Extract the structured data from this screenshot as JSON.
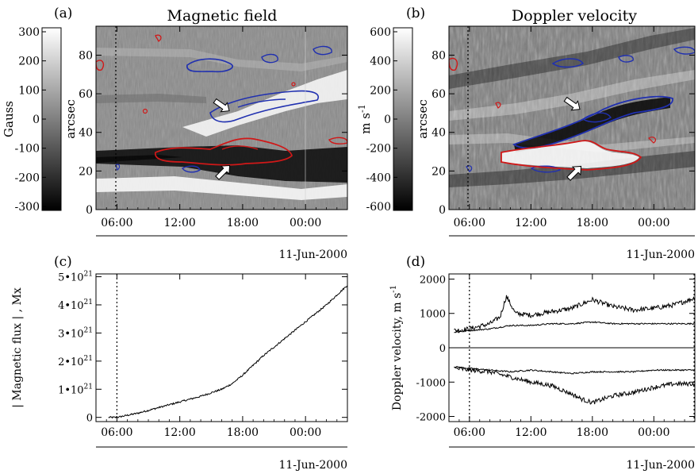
{
  "panels": {
    "a": {
      "letter": "(a)",
      "title": "Magnetic field",
      "colorbar_label": "Gauss",
      "colorbar_ticks": [
        "300",
        "200",
        "100",
        "0",
        "-100",
        "-200",
        "-300"
      ],
      "ylabel": "arcsec",
      "yticks": [
        "0",
        "20",
        "40",
        "60",
        "80"
      ],
      "xticks": [
        "06:00",
        "12:00",
        "18:00",
        "00:00"
      ],
      "date": "11-Jun-2000"
    },
    "b": {
      "letter": "(b)",
      "title": "Doppler velocity",
      "colorbar_label": "m s",
      "colorbar_label_sup": "-1",
      "colorbar_ticks": [
        "600",
        "400",
        "200",
        "0",
        "-200",
        "-400",
        "-600"
      ],
      "ylabel": "arcsec",
      "yticks": [
        "0",
        "20",
        "40",
        "60",
        "80"
      ],
      "xticks": [
        "06:00",
        "12:00",
        "18:00",
        "00:00"
      ],
      "date": "11-Jun-2000"
    },
    "c": {
      "letter": "(c)",
      "ylabel": "| Magnetic flux | , Mx",
      "yticks": [
        "0",
        "1•10",
        "2•10",
        "3•10",
        "4•10",
        "5•10"
      ],
      "ytick_exp": "21",
      "xticks": [
        "06:00",
        "12:00",
        "18:00",
        "00:00"
      ],
      "date": "11-Jun-2000"
    },
    "d": {
      "letter": "(d)",
      "ylabel": "Doppler velocity, m s",
      "ylabel_sup": "-1",
      "yticks": [
        "2000",
        "1000",
        "0",
        "-1000",
        "-2000"
      ],
      "xticks": [
        "06:00",
        "12:00",
        "18:00",
        "00:00"
      ],
      "date": "11-Jun-2000"
    }
  },
  "colors": {
    "positive_contour": "#2030b0",
    "negative_contour": "#d01818",
    "axis": "#000000"
  },
  "chart_data": [
    {
      "panel": "c",
      "type": "line",
      "xlabel": "",
      "ylabel": "| Magnetic flux | , Mx",
      "x_unit": "hours since 00:00 10-Jun-2000",
      "xlim": [
        4,
        28
      ],
      "ylim": [
        -1.5e+20,
        5.1e+21
      ],
      "series": [
        {
          "x": [
            6,
            8,
            10,
            12,
            14,
            16,
            17,
            18,
            20,
            22,
            24,
            26,
            28
          ],
          "values": [
            0,
            1.5e+20,
            3.5e+20,
            5.5e+20,
            7.5e+20,
            1e+21,
            1.2e+21,
            1.5e+21,
            2.2e+21,
            2.8e+21,
            3.4e+21,
            4e+21,
            4.7e+21
          ]
        }
      ],
      "markers": {
        "dotted_vline_x": 6
      }
    },
    {
      "panel": "d",
      "type": "line",
      "xlabel": "",
      "ylabel": "Doppler velocity, m s-1",
      "xlim": [
        4,
        28
      ],
      "ylim": [
        -2150,
        2150
      ],
      "series": [
        {
          "x": [
            4.5,
            6,
            8,
            9,
            9.6,
            10.5,
            12,
            14,
            16,
            18,
            20,
            22,
            24,
            26,
            28
          ],
          "values": [
            500,
            550,
            700,
            900,
            1500,
            1000,
            950,
            1050,
            1150,
            1400,
            1200,
            1100,
            1150,
            1250,
            1450
          ]
        },
        {
          "x": [
            4.5,
            6,
            8,
            10,
            12,
            14,
            16,
            18,
            20,
            22,
            24,
            26,
            28
          ],
          "values": [
            450,
            500,
            550,
            650,
            650,
            700,
            700,
            750,
            700,
            700,
            700,
            700,
            700
          ]
        },
        {
          "x": [
            4.5,
            6,
            8,
            10,
            12,
            14,
            16,
            18,
            20,
            22,
            24,
            26,
            28
          ],
          "values": [
            -550,
            -600,
            -650,
            -700,
            -650,
            -700,
            -750,
            -700,
            -700,
            -700,
            -650,
            -650,
            -650
          ]
        },
        {
          "x": [
            4.5,
            6,
            8,
            10,
            12,
            14,
            16,
            17,
            18,
            20,
            22,
            24,
            26,
            28
          ],
          "values": [
            -600,
            -650,
            -700,
            -850,
            -1000,
            -1100,
            -1350,
            -1500,
            -1600,
            -1400,
            -1300,
            -1150,
            -1050,
            -1050
          ]
        }
      ],
      "markers": {
        "dotted_vline_x": 6,
        "zero_line": true
      }
    }
  ]
}
